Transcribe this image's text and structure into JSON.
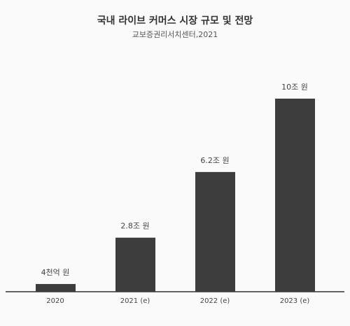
{
  "chart_data": {
    "type": "bar",
    "title": "국내 라이브 커머스 시장 규모 및 전망",
    "subtitle": "교보증권리서치센터,2021",
    "categories": [
      "2020",
      "2021 (e)",
      "2022 (e)",
      "2023 (e)"
    ],
    "values": [
      0.4,
      2.8,
      6.2,
      10
    ],
    "value_labels": [
      "4천억 원",
      "2.8조 원",
      "6.2조 원",
      "10조 원"
    ],
    "color": "#3d3d3d"
  }
}
